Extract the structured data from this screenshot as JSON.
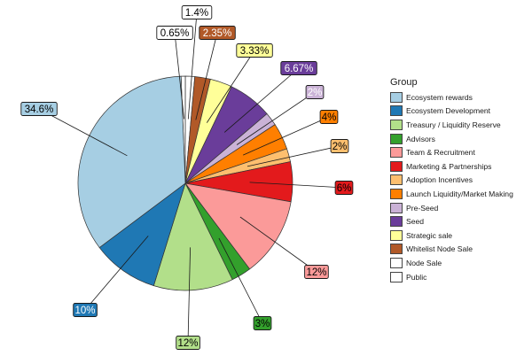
{
  "chart_data": {
    "type": "pie",
    "title": "",
    "legend": {
      "title": "Group",
      "placement": "right"
    },
    "slices": [
      {
        "label": "Public",
        "value": 0.65,
        "text": "0.65%",
        "color": "#ffffff",
        "text_color": "#000000"
      },
      {
        "label": "Node Sale",
        "value": 1.4,
        "text": "1.4%",
        "color": "#ffffff",
        "text_color": "#000000"
      },
      {
        "label": "Whitelist Node Sale",
        "value": 2.35,
        "text": "2.35%",
        "color": "#b15928",
        "text_color": "#ffffff"
      },
      {
        "label": "Strategic sale",
        "value": 3.33,
        "text": "3.33%",
        "color": "#ffff99",
        "text_color": "#000000"
      },
      {
        "label": "Seed",
        "value": 6.67,
        "text": "6.67%",
        "color": "#6a3d9a",
        "text_color": "#ffffff"
      },
      {
        "label": "Pre-Seed",
        "value": 2,
        "text": "2%",
        "color": "#cab2d6",
        "text_color": "#ffffff"
      },
      {
        "label": "Launch Liquidity/Market Making",
        "value": 4,
        "text": "4%",
        "color": "#ff7f00",
        "text_color": "#000000"
      },
      {
        "label": "Adoption Incentives",
        "value": 2,
        "text": "2%",
        "color": "#fdbf6f",
        "text_color": "#000000"
      },
      {
        "label": "Marketing & Partnerships",
        "value": 6,
        "text": "6%",
        "color": "#e31a1c",
        "text_color": "#000000"
      },
      {
        "label": "Team & Recruitment",
        "value": 12,
        "text": "12%",
        "color": "#fb9a99",
        "text_color": "#000000"
      },
      {
        "label": "Advisors",
        "value": 3,
        "text": "3%",
        "color": "#33a02c",
        "text_color": "#000000"
      },
      {
        "label": "Treasury / Liquidity Reserve",
        "value": 12,
        "text": "12%",
        "color": "#b2df8a",
        "text_color": "#000000"
      },
      {
        "label": "Ecosystem Development",
        "value": 10,
        "text": "10%",
        "color": "#1f78b4",
        "text_color": "#ffffff"
      },
      {
        "label": "Ecosystem rewards",
        "value": 34.6,
        "text": "34.6%",
        "color": "#a6cee3",
        "text_color": "#000000"
      }
    ],
    "legend_order": [
      "Ecosystem rewards",
      "Ecosystem Development",
      "Treasury / Liquidity Reserve",
      "Advisors",
      "Team & Recruitment",
      "Marketing & Partnerships",
      "Adoption Incentives",
      "Launch Liquidity/Market Making",
      "Pre-Seed",
      "Seed",
      "Strategic sale",
      "Whitelist Node Sale",
      "Node Sale",
      "Public"
    ]
  }
}
